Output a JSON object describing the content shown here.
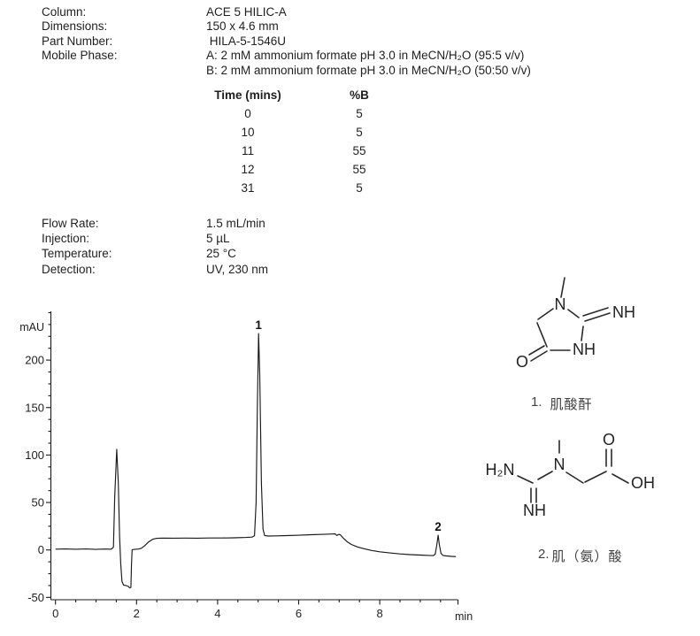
{
  "method": {
    "rows": [
      {
        "label": "Column:",
        "value": "ACE 5 HILIC-A"
      },
      {
        "label": "Dimensions:",
        "value": "150 x 4.6 mm"
      },
      {
        "label": "Part Number:",
        "value": " HILA-5-1546U"
      },
      {
        "label": "Mobile Phase:",
        "value": "A: 2 mM ammonium formate pH 3.0 in MeCN/H₂O (95:5 v/v)"
      },
      {
        "label": "",
        "value": "B: 2 mM ammonium formate pH 3.0 in MeCN/H₂O (50:50 v/v)"
      }
    ]
  },
  "gradient_table": {
    "headers": [
      "Time (mins)",
      "%B"
    ],
    "rows": [
      [
        "0",
        "5"
      ],
      [
        "10",
        "5"
      ],
      [
        "11",
        "55"
      ],
      [
        "12",
        "55"
      ],
      [
        "31",
        "5"
      ]
    ]
  },
  "conditions": {
    "rows": [
      {
        "label": "Flow Rate:",
        "value": "1.5 mL/min"
      },
      {
        "label": "Injection:",
        "value": "5 µL"
      },
      {
        "label": "Temperature:",
        "value": "25 °C"
      },
      {
        "label": "Detection:",
        "value": "UV, 230 nm"
      }
    ]
  },
  "chart_data": {
    "type": "line",
    "title": "",
    "xlabel": "min",
    "ylabel": "mAU",
    "xlim": [
      0,
      9.9
    ],
    "ylim": [
      -50,
      252
    ],
    "x_major_ticks": [
      0,
      2,
      4,
      6,
      8
    ],
    "x_minor_step": 0.5,
    "y_major_ticks": [
      -50,
      0,
      50,
      100,
      150,
      200
    ],
    "y_minor_step": 12.5,
    "grid": false,
    "line_color": "#1a1a1a",
    "peaks": [
      {
        "label": "1",
        "time": 5.01,
        "apex_mau": 228
      },
      {
        "label": "2",
        "time": 9.44,
        "apex_mau": 15.5
      }
    ],
    "series": [
      {
        "name": "UV 230 nm",
        "points": [
          [
            0,
            0.8
          ],
          [
            0.25,
            1
          ],
          [
            0.5,
            0.7
          ],
          [
            0.75,
            1
          ],
          [
            1.0,
            0.6
          ],
          [
            1.2,
            0.9
          ],
          [
            1.38,
            0.8
          ],
          [
            1.43,
            3
          ],
          [
            1.46,
            55
          ],
          [
            1.51,
            106
          ],
          [
            1.55,
            70
          ],
          [
            1.58,
            15
          ],
          [
            1.61,
            -14
          ],
          [
            1.64,
            -33
          ],
          [
            1.68,
            -37
          ],
          [
            1.74,
            -37.5
          ],
          [
            1.8,
            -38.5
          ],
          [
            1.83,
            -40
          ],
          [
            1.86,
            -39.5
          ],
          [
            1.875,
            -15
          ],
          [
            1.89,
            0.3
          ],
          [
            1.95,
            0.6
          ],
          [
            2.05,
            0.9
          ],
          [
            2.12,
            1.8
          ],
          [
            2.2,
            4.5
          ],
          [
            2.3,
            8.5
          ],
          [
            2.4,
            11.3
          ],
          [
            2.5,
            12.2
          ],
          [
            2.65,
            12.5
          ],
          [
            2.9,
            12.4
          ],
          [
            3.2,
            12.5
          ],
          [
            3.5,
            12.4
          ],
          [
            3.8,
            12.6
          ],
          [
            4.1,
            12.6
          ],
          [
            4.4,
            12.8
          ],
          [
            4.7,
            13.1
          ],
          [
            4.85,
            13.5
          ],
          [
            4.91,
            15
          ],
          [
            4.95,
            50
          ],
          [
            4.98,
            150
          ],
          [
            5.01,
            228
          ],
          [
            5.04,
            185
          ],
          [
            5.08,
            70
          ],
          [
            5.12,
            22
          ],
          [
            5.16,
            15.2
          ],
          [
            5.25,
            14.6
          ],
          [
            5.45,
            14.8
          ],
          [
            5.7,
            15.1
          ],
          [
            6.0,
            15.5
          ],
          [
            6.3,
            16
          ],
          [
            6.6,
            16.4
          ],
          [
            6.82,
            16.8
          ],
          [
            6.9,
            17
          ],
          [
            6.94,
            15.2
          ],
          [
            6.99,
            16.4
          ],
          [
            7.03,
            15.8
          ],
          [
            7.1,
            12.5
          ],
          [
            7.2,
            8.5
          ],
          [
            7.3,
            5.8
          ],
          [
            7.45,
            3.2
          ],
          [
            7.6,
            1.4
          ],
          [
            7.8,
            -0.6
          ],
          [
            8.0,
            -2
          ],
          [
            8.25,
            -3.2
          ],
          [
            8.5,
            -4.2
          ],
          [
            8.75,
            -4.9
          ],
          [
            9.0,
            -5.4
          ],
          [
            9.2,
            -5.8
          ],
          [
            9.32,
            -6
          ],
          [
            9.37,
            -4.5
          ],
          [
            9.41,
            6
          ],
          [
            9.44,
            15.5
          ],
          [
            9.47,
            6
          ],
          [
            9.51,
            -3.5
          ],
          [
            9.56,
            -5.8
          ],
          [
            9.65,
            -6.3
          ],
          [
            9.78,
            -6.8
          ],
          [
            9.88,
            -7
          ]
        ]
      }
    ]
  },
  "structures": [
    {
      "caption_num": "1.",
      "caption_name": "肌酸酐",
      "labels": {
        "n": "N",
        "nh_imine": "NH",
        "nh_ring": "NH",
        "o": "O"
      }
    },
    {
      "caption_num": "2.",
      "caption_name": "肌（氨）酸",
      "labels": {
        "h2n": "H₂N",
        "n": "N",
        "nh": "NH",
        "o": "O",
        "oh": "OH"
      }
    }
  ]
}
